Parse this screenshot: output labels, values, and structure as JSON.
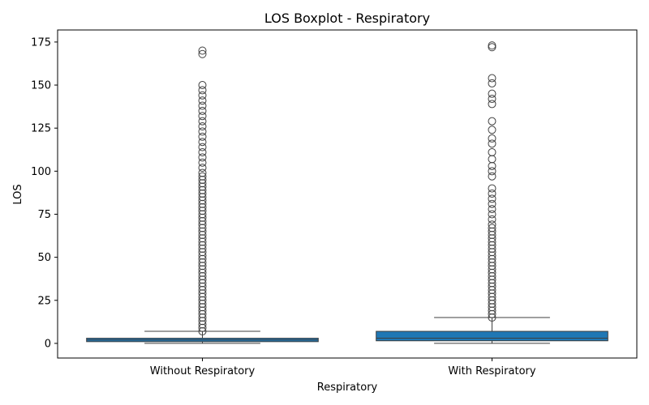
{
  "chart_data": {
    "type": "boxplot",
    "title": "LOS Boxplot - Respiratory",
    "xlabel": "Respiratory",
    "ylabel": "LOS",
    "ylim": [
      -8.5,
      182
    ],
    "yticks": [
      0,
      25,
      50,
      75,
      100,
      125,
      150,
      175
    ],
    "grid": false,
    "categories": [
      "Without Respiratory",
      "With Respiratory"
    ],
    "box_color": "#1f77b4",
    "series": [
      {
        "category": "Without Respiratory",
        "whisker_low": 0,
        "q1": 1,
        "median": 2,
        "q3": 3,
        "whisker_high": 7,
        "outliers": [
          7,
          9,
          11,
          13,
          15,
          17,
          19,
          21,
          23,
          25,
          27,
          29,
          31,
          33,
          35,
          37,
          39,
          41,
          43,
          45,
          47,
          49,
          51,
          53,
          55,
          57,
          59,
          61,
          63,
          65,
          67,
          69,
          71,
          73,
          75,
          77,
          79,
          81,
          83,
          85,
          87,
          89,
          91,
          93,
          95,
          97,
          99,
          102,
          105,
          108,
          111,
          114,
          117,
          120,
          123,
          126,
          129,
          132,
          135,
          138,
          141,
          144,
          147,
          150,
          168,
          170
        ]
      },
      {
        "category": "With Respiratory",
        "whisker_low": 0,
        "q1": 1.5,
        "median": 3,
        "q3": 7,
        "whisker_high": 15,
        "outliers": [
          15,
          17,
          19,
          21,
          23,
          25,
          27,
          29,
          31,
          33,
          35,
          37,
          39,
          41,
          43,
          45,
          47,
          49,
          51,
          53,
          55,
          57,
          59,
          61,
          63,
          65,
          67,
          69,
          72,
          75,
          78,
          81,
          84,
          87,
          90,
          97,
          100,
          103,
          107,
          111,
          116,
          119,
          124,
          129,
          139,
          142,
          145,
          151,
          154,
          172,
          173
        ]
      }
    ]
  }
}
